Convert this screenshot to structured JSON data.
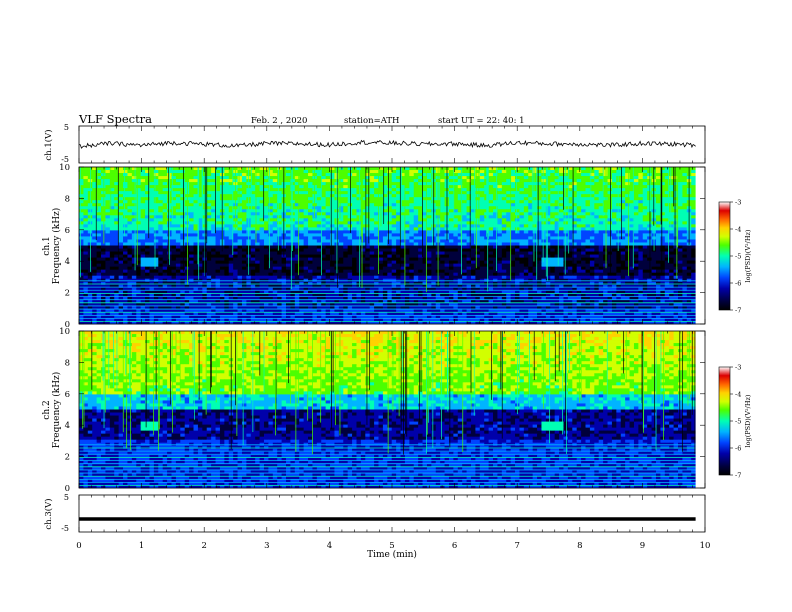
{
  "header": {
    "title": "VLF Spectra",
    "date": "Feb. 2 , 2020",
    "station": "station=ATH",
    "start": "start UT = 22: 40: 1"
  },
  "colors": {
    "ramp": [
      "#000000",
      "#00003c",
      "#0000aa",
      "#0044ff",
      "#00b4ff",
      "#00ffb4",
      "#4cff00",
      "#d2ff00",
      "#ffd200",
      "#ff6400",
      "#dc0000",
      "#ffffff"
    ],
    "trace": "#000000"
  },
  "chart_data": [
    {
      "type": "line",
      "id": "ch1",
      "ylabel": "ch.1(V)",
      "ylim": [
        -5,
        5
      ],
      "yticks": [
        "5",
        "-5"
      ],
      "description_value_level": 0.2,
      "x_range_min": [
        0,
        9.85
      ],
      "series": [
        {
          "x": [
            0,
            0.5,
            1,
            1.5,
            2,
            2.5,
            3,
            3.5,
            4,
            4.5,
            5,
            5.5,
            6,
            6.5,
            7,
            7.5,
            8,
            8.5,
            9,
            9.5,
            9.85
          ],
          "y": [
            -0.5,
            0.3,
            -0.2,
            0.5,
            0.1,
            -0.4,
            0.3,
            0.2,
            -0.1,
            0.6,
            0.4,
            0.1,
            0.2,
            -0.3,
            0.5,
            0.2,
            0.1,
            -0.2,
            0.3,
            0.1,
            -0.2
          ]
        }
      ]
    },
    {
      "type": "heatmap",
      "id": "ch1-spectrogram",
      "ylabel": "ch.1",
      "ylabel2": "Frequency (kHz)",
      "xlim": [
        0,
        10
      ],
      "ylim": [
        0,
        10
      ],
      "yticks": [
        "0",
        "2",
        "4",
        "6",
        "8",
        "10"
      ],
      "colorbar": {
        "label": "log(PSD)(V²/Hz)",
        "ticks": [
          "-3",
          "-4",
          "-5",
          "-6",
          "-7"
        ],
        "range": [
          -7,
          -3
        ]
      }
    },
    {
      "type": "heatmap",
      "id": "ch2-spectrogram",
      "ylabel": "ch.2",
      "ylabel2": "Frequency (kHz)",
      "xlim": [
        0,
        10
      ],
      "ylim": [
        0,
        10
      ],
      "yticks": [
        "0",
        "2",
        "4",
        "6",
        "8",
        "10"
      ],
      "colorbar": {
        "label": "log(PSD)(V²/Hz)",
        "ticks": [
          "-3",
          "-4",
          "-5",
          "-6",
          "-7"
        ],
        "range": [
          -7,
          -3
        ]
      }
    },
    {
      "type": "line",
      "id": "ch3",
      "ylabel": "ch.3(V)",
      "ylim": [
        -5,
        5
      ],
      "yticks": [
        "5",
        "-5"
      ],
      "series": [
        {
          "x": [
            0,
            9.85
          ],
          "y": [
            -1.5,
            -1.5
          ]
        }
      ]
    }
  ],
  "xaxis": {
    "label": "Time (min)",
    "ticks": [
      "0",
      "1",
      "2",
      "3",
      "4",
      "5",
      "6",
      "7",
      "8",
      "9",
      "10"
    ],
    "range": [
      0,
      10
    ]
  }
}
